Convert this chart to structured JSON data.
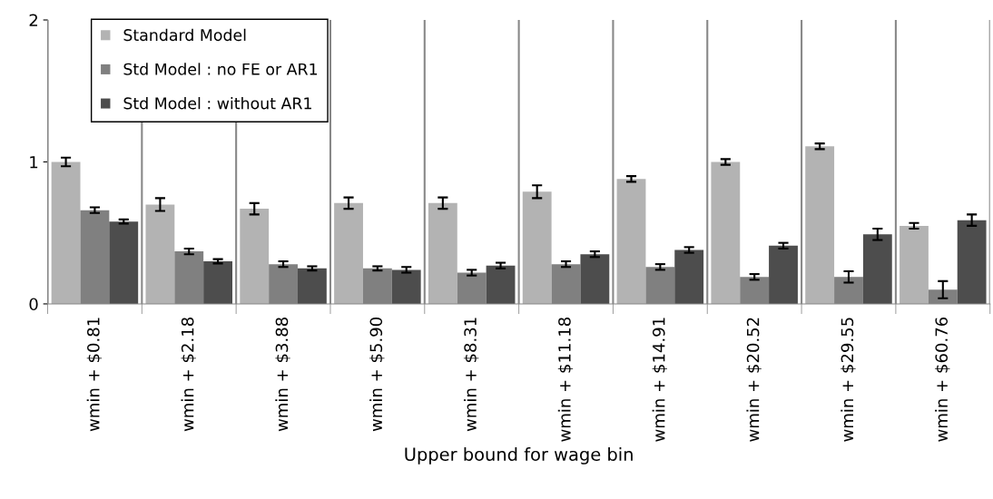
{
  "chart_data": {
    "type": "bar",
    "xlabel": "Upper bound for wage bin",
    "categories": [
      "wmin + $0.81",
      "wmin + $2.18",
      "wmin + $3.88",
      "wmin + $5.90",
      "wmin + $8.31",
      "wmin + $11.18",
      "wmin + $14.91",
      "wmin + $20.52",
      "wmin + $29.55",
      "wmin + $60.76"
    ],
    "series": [
      {
        "name": "Standard Model",
        "color": "#b3b3b3",
        "values": [
          1.0,
          0.7,
          0.67,
          0.71,
          0.71,
          0.79,
          0.88,
          1.0,
          1.11,
          0.55
        ],
        "errors": [
          0.03,
          0.045,
          0.04,
          0.04,
          0.04,
          0.045,
          0.02,
          0.02,
          0.02,
          0.02
        ]
      },
      {
        "name": "Std Model : no FE or AR1",
        "color": "#808080",
        "values": [
          0.66,
          0.37,
          0.28,
          0.25,
          0.22,
          0.28,
          0.26,
          0.19,
          0.19,
          0.1
        ],
        "errors": [
          0.02,
          0.02,
          0.02,
          0.015,
          0.02,
          0.02,
          0.02,
          0.02,
          0.04,
          0.06
        ]
      },
      {
        "name": "Std Model : without AR1",
        "color": "#4d4d4d",
        "values": [
          0.58,
          0.3,
          0.25,
          0.24,
          0.27,
          0.35,
          0.38,
          0.41,
          0.49,
          0.59
        ],
        "errors": [
          0.015,
          0.015,
          0.015,
          0.02,
          0.02,
          0.02,
          0.02,
          0.02,
          0.04,
          0.04
        ]
      }
    ],
    "ylim": [
      0,
      2
    ],
    "yticks": [
      0,
      1,
      2
    ],
    "grid": "x",
    "legend": "top left"
  }
}
